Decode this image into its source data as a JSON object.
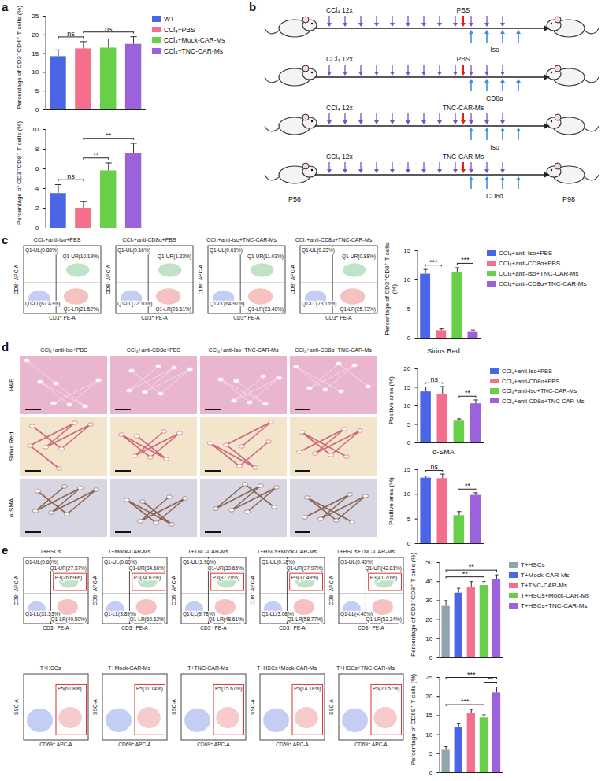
{
  "chart_data": [
    {
      "type": "bar",
      "ylabel": "Percentage of CD3⁺CD4⁺ T cells (%)",
      "categories": [
        "WT",
        "CCl₄+PBS",
        "CCl₄+Mock-CAR-Ms",
        "CCl₄+TNC-CAR-Ms"
      ],
      "values": [
        14.2,
        16.3,
        16.5,
        17.5
      ],
      "errors": [
        1.8,
        1.9,
        2.4,
        2.0
      ],
      "colors": [
        "#4a66e6",
        "#f36f8b",
        "#67cf48",
        "#9b62dc"
      ],
      "ylim": [
        0,
        25
      ],
      "yticks": [
        0,
        5,
        10,
        15,
        20,
        25
      ],
      "tick_labels": "y",
      "legend": "right",
      "comparisons": [
        {
          "between": [
            "WT",
            "CCl₄+PBS"
          ],
          "label": "ns"
        },
        {
          "between": [
            "CCl₄+PBS",
            "CCl₄+TNC-CAR-Ms"
          ],
          "label": "ns"
        }
      ]
    },
    {
      "type": "bar",
      "ylabel": "Percentage of CD3⁺CD8⁺ T cells (%)",
      "categories": [
        "WT",
        "CCl₄+PBS",
        "CCl₄+Mock-CAR-Ms",
        "CCl₄+TNC-CAR-Ms"
      ],
      "values": [
        3.5,
        2.0,
        5.8,
        7.6
      ],
      "errors": [
        0.9,
        0.7,
        0.8,
        1.0
      ],
      "colors": [
        "#4a66e6",
        "#f36f8b",
        "#67cf48",
        "#9b62dc"
      ],
      "ylim": [
        0,
        10
      ],
      "yticks": [
        0,
        2,
        4,
        6,
        8,
        10
      ],
      "tick_labels": "y",
      "comparisons": [
        {
          "between": [
            "WT",
            "CCl₄+PBS"
          ],
          "label": "ns"
        },
        {
          "between": [
            "CCl₄+PBS",
            "CCl₄+Mock-CAR-Ms"
          ],
          "label": "**"
        },
        {
          "between": [
            "CCl₄+PBS",
            "CCl₄+TNC-CAR-Ms"
          ],
          "label": "**"
        }
      ]
    },
    {
      "type": "bar",
      "ylabel": "Percentage of CD3⁺CD8⁺ T cells (%)",
      "categories": [
        "CCl₄+anti-Iso+PBS",
        "CCl₄+anti-CD8α+PBS",
        "CCl₄+anti-Iso+TNC-CAR-Ms",
        "CCl₄+anti-CD8α+TNC-CAR-Ms"
      ],
      "values": [
        11.0,
        1.3,
        11.3,
        1.0
      ],
      "errors": [
        0.8,
        0.3,
        0.8,
        0.4
      ],
      "colors": [
        "#4a66e6",
        "#f36f8b",
        "#67cf48",
        "#9b62dc"
      ],
      "ylim": [
        0,
        15
      ],
      "yticks": [
        0,
        5,
        10,
        15
      ],
      "tick_labels": "y",
      "legend": "right",
      "comparisons": [
        {
          "between": [
            "CCl₄+anti-Iso+PBS",
            "CCl₄+anti-CD8α+PBS"
          ],
          "label": "***"
        },
        {
          "between": [
            "CCl₄+anti-Iso+TNC-CAR-Ms",
            "CCl₄+anti-CD8α+TNC-CAR-Ms"
          ],
          "label": "***"
        }
      ]
    },
    {
      "type": "bar",
      "title": "Sirius Red",
      "ylabel": "Positive area (%)",
      "categories": [
        "CCl₄+anti-Iso+PBS",
        "CCl₄+anti-CD8α+PBS",
        "CCl₄+anti-Iso+TNC-CAR-Ms",
        "CCl₄+anti-CD8α+TNC-CAR-Ms"
      ],
      "values": [
        13.8,
        13.2,
        5.9,
        10.6
      ],
      "errors": [
        1.3,
        2.0,
        0.6,
        1.0
      ],
      "colors": [
        "#4a66e6",
        "#f36f8b",
        "#67cf48",
        "#9b62dc"
      ],
      "ylim": [
        0,
        20
      ],
      "yticks": [
        0,
        5,
        10,
        15,
        20
      ],
      "tick_labels": "y",
      "legend": "right",
      "comparisons": [
        {
          "between": [
            "CCl₄+anti-Iso+PBS",
            "CCl₄+anti-CD8α+PBS"
          ],
          "label": "ns"
        },
        {
          "between": [
            "CCl₄+anti-Iso+TNC-CAR-Ms",
            "CCl₄+anti-CD8α+TNC-CAR-Ms"
          ],
          "label": "**"
        }
      ]
    },
    {
      "type": "bar",
      "title": "α-SMA",
      "ylabel": "Positive area (%)",
      "categories": [
        "CCl₄+anti-Iso+PBS",
        "CCl₄+anti-CD8α+PBS",
        "CCl₄+anti-Iso+TNC-CAR-Ms",
        "CCl₄+anti-CD8α+TNC-CAR-Ms"
      ],
      "values": [
        13.3,
        13.2,
        5.7,
        9.8
      ],
      "errors": [
        0.4,
        0.9,
        0.8,
        0.5
      ],
      "colors": [
        "#4a66e6",
        "#f36f8b",
        "#67cf48",
        "#9b62dc"
      ],
      "ylim": [
        0,
        15
      ],
      "yticks": [
        0,
        5,
        10,
        15
      ],
      "tick_labels": "y",
      "comparisons": [
        {
          "between": [
            "CCl₄+anti-Iso+PBS",
            "CCl₄+anti-CD8α+PBS"
          ],
          "label": "ns"
        },
        {
          "between": [
            "CCl₄+anti-Iso+TNC-CAR-Ms",
            "CCl₄+anti-CD8α+TNC-CAR-Ms"
          ],
          "label": "**"
        }
      ]
    },
    {
      "type": "bar",
      "ylabel": "Percentage of CD3⁺CD8⁺ T cells (%)",
      "categories": [
        "T+HSCs",
        "T+Mock-CAR-Ms",
        "T+TNC-CAR-Ms",
        "T+HSCs+Mock-CAR-Ms",
        "T+HSCs+TNC-CAR-Ms"
      ],
      "values": [
        27,
        34,
        37,
        38,
        41
      ],
      "errors": [
        3,
        2.5,
        3,
        2,
        2.5
      ],
      "colors": [
        "#90a4ae",
        "#4a66e6",
        "#f36f8b",
        "#67cf48",
        "#9b62dc"
      ],
      "ylim": [
        0,
        50
      ],
      "yticks": [
        0,
        10,
        20,
        30,
        40,
        50
      ],
      "tick_labels": "y",
      "legend": "right",
      "comparisons": [
        {
          "between": [
            "T+HSCs",
            "T+HSCs+Mock-CAR-Ms"
          ],
          "label": "**"
        },
        {
          "between": [
            "T+HSCs",
            "T+HSCs+TNC-CAR-Ms"
          ],
          "label": "**"
        }
      ]
    },
    {
      "type": "bar",
      "ylabel": "Percentage of CD69⁺ T cells (%)",
      "categories": [
        "T+HSCs",
        "T+Mock-CAR-Ms",
        "T+TNC-CAR-Ms",
        "T+HSCs+Mock-CAR-Ms",
        "T+HSCs+TNC-CAR-Ms"
      ],
      "values": [
        6.1,
        11.8,
        15.6,
        14.4,
        21.0
      ],
      "errors": [
        0.7,
        1.2,
        1.0,
        0.8,
        1.5
      ],
      "colors": [
        "#90a4ae",
        "#4a66e6",
        "#f36f8b",
        "#67cf48",
        "#9b62dc"
      ],
      "ylim": [
        0,
        25
      ],
      "yticks": [
        0,
        5,
        10,
        15,
        20,
        25
      ],
      "tick_labels": "y",
      "comparisons": [
        {
          "between": [
            "T+HSCs+Mock-CAR-Ms",
            "T+HSCs+TNC-CAR-Ms"
          ],
          "label": "**"
        },
        {
          "between": [
            "T+HSCs",
            "T+HSCs+Mock-CAR-Ms"
          ],
          "label": "***"
        },
        {
          "between": [
            "T+HSCs",
            "T+HSCs+TNC-CAR-Ms"
          ],
          "label": "***"
        }
      ]
    }
  ],
  "panel_letters": [
    "a",
    "b",
    "c",
    "d",
    "e"
  ],
  "schematic": {
    "ccl4_injections": 12,
    "antibody_injections": 4,
    "start": "P56",
    "end": "P98",
    "rows": [
      {
        "top": "CCl₄ 12x",
        "treatment": "PBS",
        "antibody": "Iso"
      },
      {
        "top": "CCl₄ 12x",
        "treatment": "PBS",
        "antibody": "CD8α"
      },
      {
        "top": "CCl₄ 12x",
        "treatment": "TNC-CAR-Ms",
        "antibody": "Iso"
      },
      {
        "top": "CCl₄ 12x",
        "treatment": "TNC-CAR-Ms",
        "antibody": "CD8α"
      }
    ]
  },
  "flow_c": {
    "xlabel": "CD3⁺ PE-A",
    "ylabel": "CD8⁺ APC-A",
    "plots": [
      {
        "title": "CCl₄+anti-Iso+PBS",
        "UL": "Q1-UL(0.88%)",
        "UR": "Q1-UR(10.19%)",
        "LL": "Q1-LL(67.43%)",
        "LR": "Q1-LR(21.52%)"
      },
      {
        "title": "CCl₄+anti-CD8α+PBS",
        "UL": "Q1-UL(0.16%)",
        "UR": "Q1-UR(1.23%)",
        "LL": "Q1-LL(72.10%)",
        "LR": "Q1-LR(26.51%)"
      },
      {
        "title": "CCl₄+anti-Iso+TNC-CAR-Ms",
        "UL": "Q1-UL(0.61%)",
        "UR": "Q1-UR(11.03%)",
        "LL": "Q1-LL(64.97%)",
        "LR": "Q1-LR(23.40%)"
      },
      {
        "title": "CCl₄+anti-CD8α+TNC-CAR-Ms",
        "UL": "Q1-UL(0.23%)",
        "UR": "Q1-UR(0.88%)",
        "LL": "Q1-LL(73.16%)",
        "LR": "Q1-LR(25.73%)"
      }
    ]
  },
  "histology": {
    "columns": [
      "CCl₄+anti-Iso+PBS",
      "CCl₄+anti-CD8α+PBS",
      "CCl₄+anti-Iso+TNC-CAR-Ms",
      "CCl₄+anti-CD8α+TNC-CAR-Ms"
    ],
    "rows": [
      "H&E",
      "Sirius Red",
      "α-SMA"
    ]
  },
  "flow_e_upper": {
    "xlabel": "CD3⁺ PE-A",
    "ylabel": "CD8⁺ APC-A",
    "plots": [
      {
        "title": "T+HSCs",
        "UL": "Q1-UL(0.60%)",
        "UR": "Q1-UR(27.37%)",
        "LL": "Q1-LL(31.53%)",
        "LR": "Q1-LR(40.50%)",
        "gate": "P3(26.69%)"
      },
      {
        "title": "T+Mock-CAR-Ms",
        "UL": "Q1-UL(0.60%)",
        "UR": "Q1-UR(34.66%)",
        "LL": "Q1-LL(3.89%)",
        "LR": "Q1-LR(60.62%)",
        "gate": "P3(34.63%)"
      },
      {
        "title": "T+TNC-CAR-Ms",
        "UL": "Q1-UL(1.96%)",
        "UR": "Q1-UR(39.65%)",
        "LL": "Q1-LL(9.78%)",
        "LR": "Q1-LR(48.61%)",
        "gate": "P3(37.78%)"
      },
      {
        "title": "T+HSCs+Mock-CAR-Ms",
        "UL": "Q1-UL(0.18%)",
        "UR": "Q1-UR(37.97%)",
        "LL": "Q1-LL(3.08%)",
        "LR": "Q1-LR(58.77%)",
        "gate": "P3(37.48%)"
      },
      {
        "title": "T+HSCs+TNC-CAR-Ms",
        "UL": "Q1-UL(0.45%)",
        "UR": "Q1-UR(42.81%)",
        "LL": "Q1-LL(4.40%)",
        "LR": "Q1-LR(52.34%)",
        "gate": "P3(41.70%)"
      }
    ]
  },
  "flow_e_lower": {
    "xlabel": "CD69⁺ APC-A",
    "ylabel": "SSC-A",
    "plots": [
      {
        "title": "T+HSCs",
        "gate": "P5(6.08%)"
      },
      {
        "title": "T+Mock-CAR-Ms",
        "gate": "P5(11.14%)"
      },
      {
        "title": "T+TNC-CAR-Ms",
        "gate": "P5(15.67%)"
      },
      {
        "title": "T+HSCs+Mock-CAR-Ms",
        "gate": "P5(14.18%)"
      },
      {
        "title": "T+HSCs+TNC-CAR-Ms",
        "gate": "P5(20.57%)"
      }
    ]
  }
}
